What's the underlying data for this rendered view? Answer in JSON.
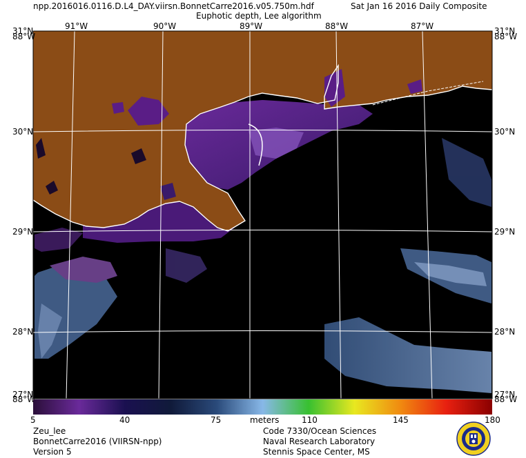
{
  "header": {
    "file_name": "npp.2016016.0116.D.L4_DAY.viirsn.BonnetCarre2016.v05.750m.hdf",
    "composite_label": "Sat Jan 16 2016 Daily Composite",
    "product_title": "Euphotic depth, Lee algorithm"
  },
  "map": {
    "longitude_labels": [
      "91°W",
      "90°W",
      "89°W",
      "88°W",
      "87°W"
    ],
    "latitude_labels": [
      "31°N",
      "30°N",
      "29°N",
      "28°N",
      "27°N"
    ],
    "corner_labels": {
      "top_left_lat": "31°N",
      "top_left_lon": "88°W",
      "top_right_lat": "31°N",
      "top_right_lon": "88°W",
      "bottom_left_lat": "27°N",
      "bottom_left_lon": "88°W",
      "bottom_right_lat": "27°N",
      "bottom_right_lon": "88°W"
    },
    "colors": {
      "land": "#8b4c16",
      "no_data": "#000000",
      "coastline": "#ffffff",
      "grid": "#ffffff",
      "nearshore": "#5a1d86",
      "offshore": "#5a7aaa"
    }
  },
  "colorbar": {
    "unit_label": "meters",
    "tick_labels": [
      "5",
      "40",
      "75",
      "110",
      "145",
      "180"
    ],
    "min": 5,
    "max": 180,
    "colors": [
      "#2b0f3a",
      "#6a2a9a",
      "#1a1050",
      "#101a3a",
      "#2a4a7a",
      "#88b8e8",
      "#38c030",
      "#e8e820",
      "#f08a10",
      "#e82010",
      "#8a0000"
    ]
  },
  "footer": {
    "left": [
      "Zeu_lee",
      "BonnetCarre2016 (VIIRSN-npp)",
      "Version 5"
    ],
    "right": [
      "Code 7330/Ocean Sciences",
      "Naval Research Laboratory",
      "Stennis Space Center, MS"
    ]
  },
  "seal": {
    "icon": "nrl-seal-icon"
  }
}
